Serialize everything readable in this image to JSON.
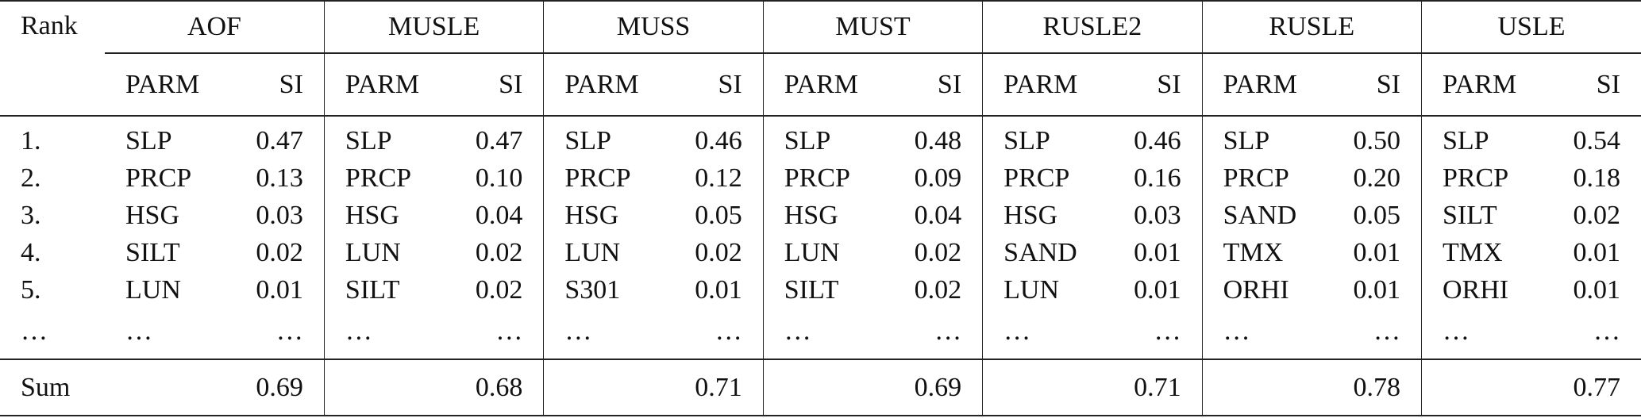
{
  "header": {
    "rank": "Rank",
    "models": [
      "AOF",
      "MUSLE",
      "MUSS",
      "MUST",
      "RUSLE2",
      "RUSLE",
      "USLE"
    ],
    "parm": "PARM",
    "si": "SI"
  },
  "rows": [
    {
      "rank": "1.",
      "cells": [
        [
          "SLP",
          "0.47"
        ],
        [
          "SLP",
          "0.47"
        ],
        [
          "SLP",
          "0.46"
        ],
        [
          "SLP",
          "0.48"
        ],
        [
          "SLP",
          "0.46"
        ],
        [
          "SLP",
          "0.50"
        ],
        [
          "SLP",
          "0.54"
        ]
      ]
    },
    {
      "rank": "2.",
      "cells": [
        [
          "PRCP",
          "0.13"
        ],
        [
          "PRCP",
          "0.10"
        ],
        [
          "PRCP",
          "0.12"
        ],
        [
          "PRCP",
          "0.09"
        ],
        [
          "PRCP",
          "0.16"
        ],
        [
          "PRCP",
          "0.20"
        ],
        [
          "PRCP",
          "0.18"
        ]
      ]
    },
    {
      "rank": "3.",
      "cells": [
        [
          "HSG",
          "0.03"
        ],
        [
          "HSG",
          "0.04"
        ],
        [
          "HSG",
          "0.05"
        ],
        [
          "HSG",
          "0.04"
        ],
        [
          "HSG",
          "0.03"
        ],
        [
          "SAND",
          "0.05"
        ],
        [
          "SILT",
          "0.02"
        ]
      ]
    },
    {
      "rank": "4.",
      "cells": [
        [
          "SILT",
          "0.02"
        ],
        [
          "LUN",
          "0.02"
        ],
        [
          "LUN",
          "0.02"
        ],
        [
          "LUN",
          "0.02"
        ],
        [
          "SAND",
          "0.01"
        ],
        [
          "TMX",
          "0.01"
        ],
        [
          "TMX",
          "0.01"
        ]
      ]
    },
    {
      "rank": "5.",
      "cells": [
        [
          "LUN",
          "0.01"
        ],
        [
          "SILT",
          "0.02"
        ],
        [
          "S301",
          "0.01"
        ],
        [
          "SILT",
          "0.02"
        ],
        [
          "LUN",
          "0.01"
        ],
        [
          "ORHI",
          "0.01"
        ],
        [
          "ORHI",
          "0.01"
        ]
      ]
    }
  ],
  "ellipsis": "…",
  "sum": {
    "label": "Sum",
    "values": [
      "0.69",
      "0.68",
      "0.71",
      "0.69",
      "0.71",
      "0.78",
      "0.77"
    ]
  }
}
